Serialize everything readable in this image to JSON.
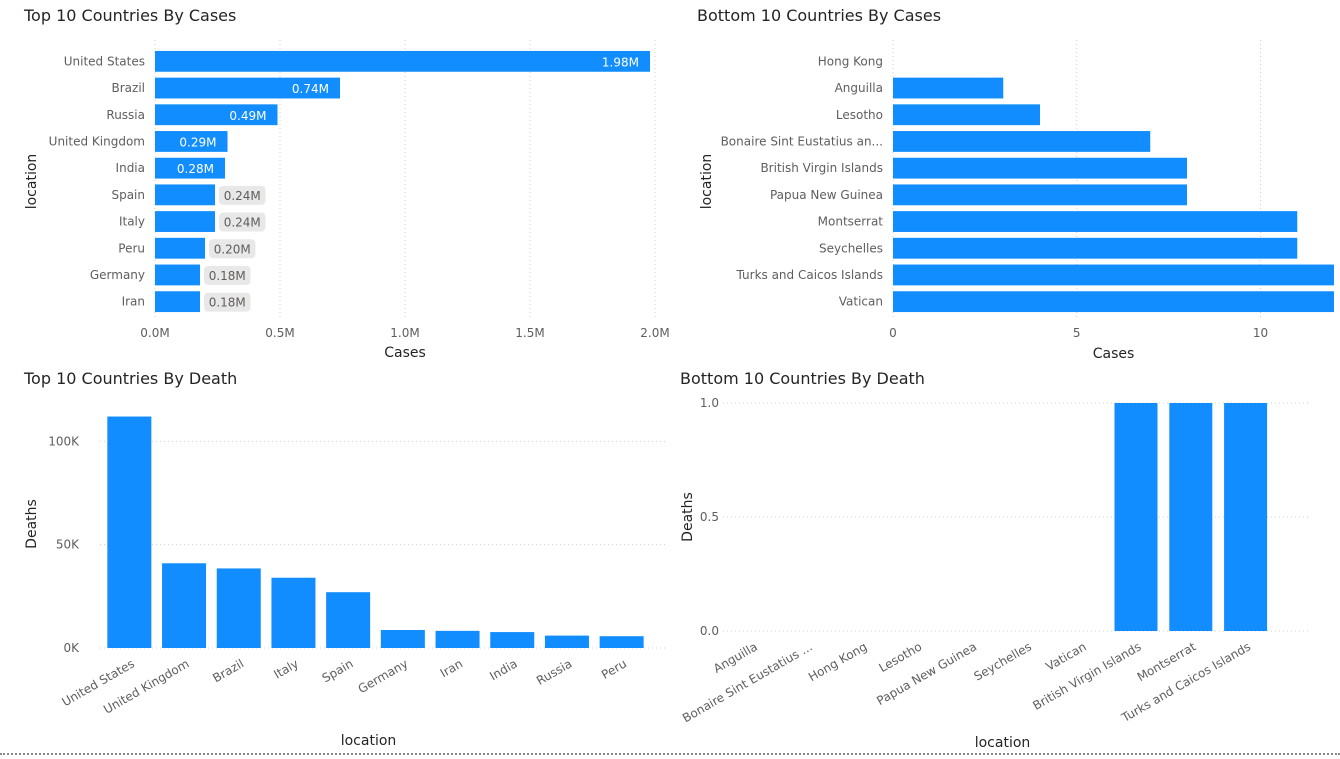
{
  "titles": {
    "top_cases": "Top 10 Countries By Cases",
    "bottom_cases": "Bottom 10 Countries By Cases",
    "top_death": "Top 10 Countries By Death",
    "bottom_death": "Bottom 10 Countries By Death"
  },
  "colors": {
    "bar": "#118dff"
  },
  "chart_data": [
    {
      "id": "top_cases",
      "type": "bar",
      "orientation": "horizontal",
      "title": "Top 10 Countries By Cases",
      "xlabel": "Cases",
      "ylabel": "location",
      "categories": [
        "United States",
        "Brazil",
        "Russia",
        "United Kingdom",
        "India",
        "Spain",
        "Italy",
        "Peru",
        "Germany",
        "Iran"
      ],
      "values": [
        1980000,
        740000,
        490000,
        290000,
        280000,
        240000,
        240000,
        200000,
        180000,
        180000
      ],
      "data_labels": [
        "1.98M",
        "0.74M",
        "0.49M",
        "0.29M",
        "0.28M",
        "0.24M",
        "0.24M",
        "0.20M",
        "0.18M",
        "0.18M"
      ],
      "xlim": [
        0,
        2000000
      ],
      "xticks": [
        0,
        500000,
        1000000,
        1500000,
        2000000
      ],
      "xtick_labels": [
        "0.0M",
        "0.5M",
        "1.0M",
        "1.5M",
        "2.0M"
      ],
      "grid": true
    },
    {
      "id": "bottom_cases",
      "type": "bar",
      "orientation": "horizontal",
      "title": "Bottom 10 Countries By Cases",
      "xlabel": "Cases",
      "ylabel": "location",
      "categories": [
        "Hong Kong",
        "Anguilla",
        "Lesotho",
        "Bonaire Sint Eustatius an...",
        "British Virgin Islands",
        "Papua New Guinea",
        "Montserrat",
        "Seychelles",
        "Turks and Caicos Islands",
        "Vatican"
      ],
      "values": [
        0,
        3,
        4,
        7,
        8,
        8,
        11,
        11,
        12,
        12
      ],
      "xlim": [
        0,
        12
      ],
      "xticks": [
        0,
        5,
        10
      ],
      "xtick_labels": [
        "0",
        "5",
        "10"
      ],
      "grid": true
    },
    {
      "id": "top_death",
      "type": "bar",
      "orientation": "vertical",
      "title": "Top 10 Countries By Death",
      "xlabel": "location",
      "ylabel": "Deaths",
      "categories": [
        "United States",
        "United Kingdom",
        "Brazil",
        "Italy",
        "Spain",
        "Germany",
        "Iran",
        "India",
        "Russia",
        "Peru"
      ],
      "values": [
        112000,
        41000,
        38500,
        34000,
        27000,
        8700,
        8300,
        7700,
        6000,
        5700
      ],
      "ylim": [
        0,
        120000
      ],
      "yticks": [
        0,
        50000,
        100000
      ],
      "ytick_labels": [
        "0K",
        "50K",
        "100K"
      ],
      "grid": true
    },
    {
      "id": "bottom_death",
      "type": "bar",
      "orientation": "vertical",
      "title": "Bottom 10 Countries By Death",
      "xlabel": "location",
      "ylabel": "Deaths",
      "categories": [
        "Anguilla",
        "Bonaire Sint Eustatius ...",
        "Hong Kong",
        "Lesotho",
        "Papua New Guinea",
        "Seychelles",
        "Vatican",
        "British Virgin Islands",
        "Montserrat",
        "Turks and Caicos Islands"
      ],
      "values": [
        0,
        0,
        0,
        0,
        0,
        0,
        0,
        1,
        1,
        1
      ],
      "ylim": [
        0,
        1
      ],
      "yticks": [
        0,
        0.5,
        1
      ],
      "ytick_labels": [
        "0.0",
        "0.5",
        "1.0"
      ],
      "grid": true
    }
  ]
}
